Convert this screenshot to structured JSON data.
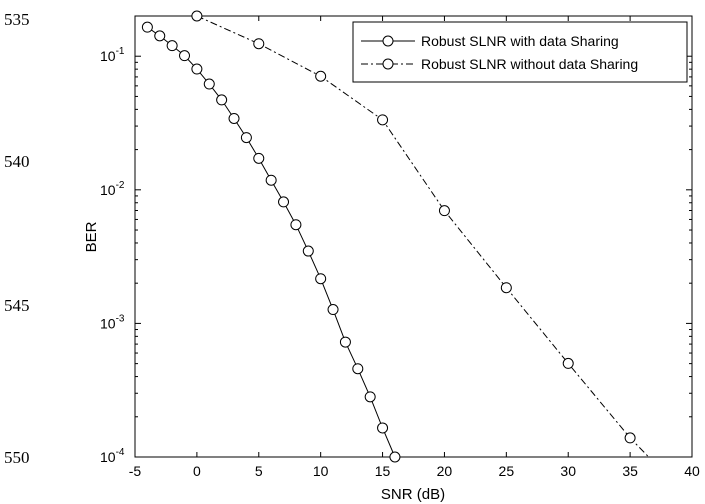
{
  "line_numbers": [
    "535",
    "540",
    "545",
    "550"
  ],
  "chart_data": {
    "type": "line",
    "xlabel": "SNR (dB)",
    "ylabel": "BER",
    "xlim": [
      -5,
      40
    ],
    "ylim": [
      0.0001,
      0.2
    ],
    "yscale": "log",
    "xticks": [
      "-5",
      "0",
      "5",
      "10",
      "15",
      "20",
      "25",
      "30",
      "35",
      "40"
    ],
    "yticks": [
      {
        "base": "10",
        "exp": "-1",
        "value": 0.1
      },
      {
        "base": "10",
        "exp": "-2",
        "value": 0.01
      },
      {
        "base": "10",
        "exp": "-3",
        "value": 0.001
      },
      {
        "base": "10",
        "exp": "-4",
        "value": 0.0001
      }
    ],
    "legend_position": "top-right",
    "grid": false,
    "series": [
      {
        "name": "Robust SLNR with data Sharing",
        "line_style": "solid",
        "marker": "circle",
        "x": [
          -4,
          -3,
          -2,
          -1,
          0,
          1,
          2,
          3,
          4,
          5,
          6,
          7,
          8,
          9,
          10,
          11,
          12,
          13,
          14,
          15,
          16
        ],
        "y": [
          0.165,
          0.142,
          0.12,
          0.101,
          0.0802,
          0.0619,
          0.0471,
          0.0342,
          0.0246,
          0.0172,
          0.0118,
          0.00812,
          0.00548,
          0.00348,
          0.00216,
          0.00127,
          0.000725,
          0.000458,
          0.000282,
          0.000165,
          0.0001
        ]
      },
      {
        "name": "Robust SLNR without data Sharing",
        "line_style": "dashdot",
        "marker": "circle",
        "x": [
          0,
          5,
          10,
          15,
          20,
          25,
          30,
          35,
          36.5
        ],
        "y": [
          0.2,
          0.124,
          0.0708,
          0.0334,
          0.00698,
          0.00185,
          0.000502,
          0.000139,
          0.0001
        ],
        "marker_count": 8
      }
    ]
  }
}
